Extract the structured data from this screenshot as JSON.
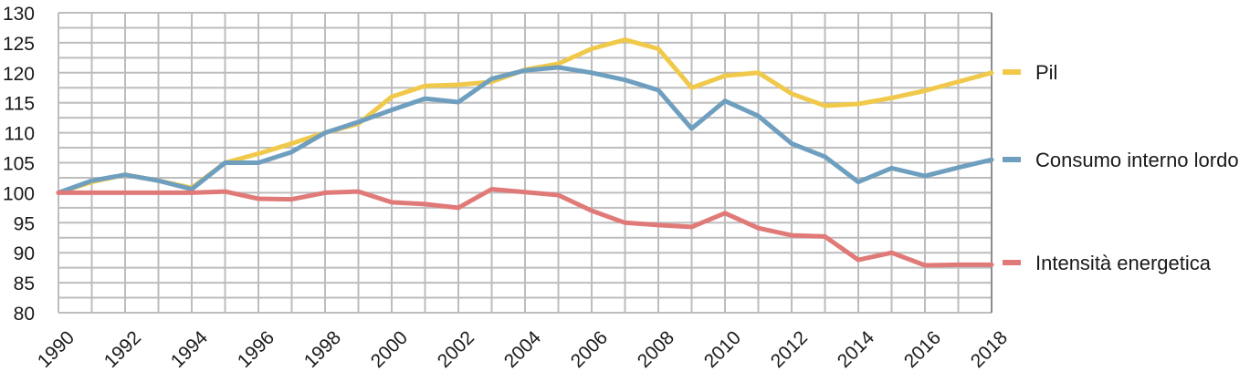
{
  "chart_data": {
    "type": "line",
    "title": "",
    "xlabel": "",
    "ylabel": "",
    "x": [
      1990,
      1991,
      1992,
      1993,
      1994,
      1995,
      1996,
      1997,
      1998,
      1999,
      2000,
      2001,
      2002,
      2003,
      2004,
      2005,
      2006,
      2007,
      2008,
      2009,
      2010,
      2011,
      2012,
      2013,
      2014,
      2015,
      2016,
      2017,
      2018
    ],
    "x_tick_labels": [
      "1990",
      "1992",
      "1994",
      "1996",
      "1998",
      "2000",
      "2002",
      "2004",
      "2006",
      "2008",
      "2010",
      "2012",
      "2014",
      "2016",
      "2018"
    ],
    "y_tick_labels": [
      "80",
      "85",
      "90",
      "95",
      "100",
      "105",
      "110",
      "115",
      "120",
      "125",
      "130"
    ],
    "ylim": [
      80,
      130
    ],
    "xlim": [
      1990,
      2018
    ],
    "grid": true,
    "legend_position": "right",
    "series": [
      {
        "name": "Pil",
        "color": "#f0c94a",
        "values": [
          100,
          101.8,
          103,
          102,
          100.8,
          105,
          106.5,
          108.2,
          110,
          111.5,
          116,
          117.8,
          118,
          118.5,
          120.5,
          121.5,
          124,
          125.5,
          124,
          117.5,
          119.5,
          120,
          116.5,
          114.5,
          114.8,
          115.8,
          117,
          118.5,
          120
        ]
      },
      {
        "name": "Consumo interno lordo",
        "color": "#6f9fbf",
        "values": [
          100,
          102,
          103,
          102,
          100.6,
          105,
          105,
          106.8,
          110,
          111.8,
          113.8,
          115.7,
          115.1,
          119,
          120.4,
          120.9,
          120,
          118.8,
          117.1,
          110.7,
          115.3,
          112.8,
          108.2,
          106,
          101.8,
          104.1,
          102.8,
          104.2,
          105.5
        ]
      },
      {
        "name": "Intensità energetica",
        "color": "#e07a78",
        "values": [
          100,
          100,
          100,
          100,
          100,
          100.2,
          99,
          98.9,
          100,
          100.2,
          98.4,
          98.1,
          97.5,
          100.6,
          100.1,
          99.6,
          97,
          95,
          94.6,
          94.3,
          96.6,
          94.1,
          92.9,
          92.7,
          88.8,
          90,
          87.9,
          88,
          88
        ]
      }
    ]
  }
}
